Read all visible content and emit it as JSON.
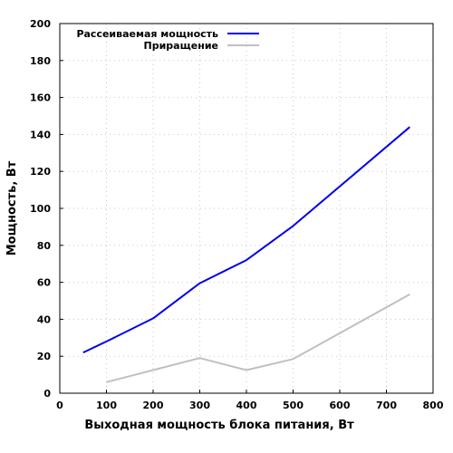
{
  "chart_data": {
    "type": "line",
    "xlabel": "Выходная мощность блока питания, Вт",
    "ylabel": "Мощность, Вт",
    "xlim": [
      0,
      800
    ],
    "ylim": [
      0,
      200
    ],
    "xticks": [
      0,
      100,
      200,
      300,
      400,
      500,
      600,
      700,
      800
    ],
    "yticks": [
      0,
      20,
      40,
      60,
      80,
      100,
      120,
      140,
      160,
      180,
      200
    ],
    "grid": true,
    "legend_position": "top-left",
    "series": [
      {
        "name": "Рассеиваемая мощность",
        "color": "#0000ee",
        "x": [
          50,
          100,
          200,
          300,
          400,
          500,
          750
        ],
        "y": [
          22,
          28,
          40.5,
          59.5,
          72,
          90.5,
          144
        ]
      },
      {
        "name": "Приращение",
        "color": "#c0c0c0",
        "x": [
          100,
          200,
          300,
          400,
          500,
          750
        ],
        "y": [
          6,
          12.5,
          19,
          12.5,
          18.5,
          53.5
        ]
      }
    ]
  }
}
